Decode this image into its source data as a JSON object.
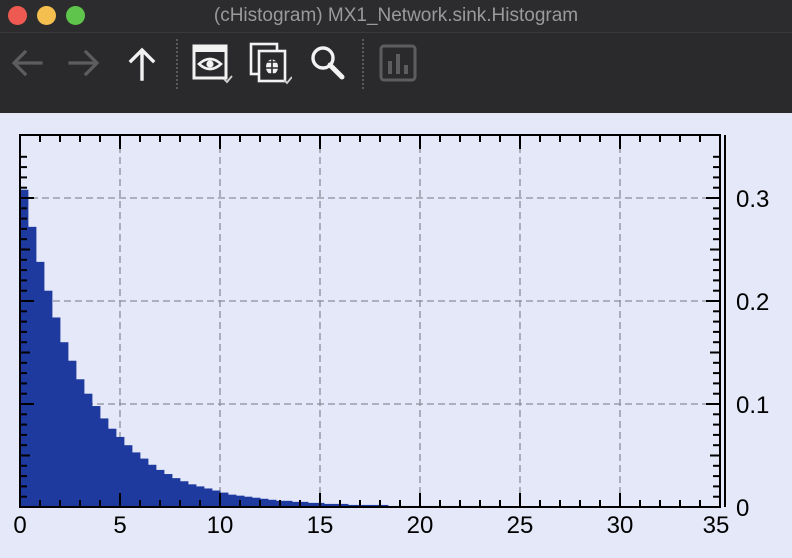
{
  "window": {
    "title": "(cHistogram) MX1_Network.sink.Histogram"
  },
  "toolbar": {
    "items": [
      {
        "name": "back-button",
        "icon": "arrow-left-icon",
        "enabled": false
      },
      {
        "name": "forward-button",
        "icon": "arrow-right-icon",
        "enabled": false
      },
      {
        "name": "up-button",
        "icon": "arrow-up-icon",
        "enabled": true
      },
      {
        "name": "inspect-button",
        "icon": "eye-icon",
        "enabled": true
      },
      {
        "name": "copy-debug-button",
        "icon": "copy-bug-icon",
        "enabled": true
      },
      {
        "name": "search-button",
        "icon": "search-icon",
        "enabled": true
      },
      {
        "name": "chart-button",
        "icon": "bar-chart-icon",
        "enabled": false
      }
    ]
  },
  "colors": {
    "bar": "#1f3a9e",
    "background": "#e4e8f8",
    "titlebar": "#2c2c2e",
    "toolbar": "#2a2a2c"
  },
  "chart_data": {
    "type": "bar",
    "title": "",
    "xlabel": "",
    "ylabel": "",
    "xlim": [
      0,
      35
    ],
    "ylim": [
      0,
      0.3
    ],
    "grid": true,
    "y_axis_side": "right",
    "x_ticks": [
      "0",
      "5",
      "10",
      "15",
      "20",
      "25",
      "30",
      "35"
    ],
    "y_ticks": [
      "0",
      "0.1",
      "0.2",
      "0.3"
    ],
    "bin_width": 0.4,
    "values": [
      0.308,
      0.272,
      0.238,
      0.21,
      0.184,
      0.16,
      0.142,
      0.124,
      0.11,
      0.098,
      0.086,
      0.076,
      0.068,
      0.06,
      0.053,
      0.047,
      0.041,
      0.036,
      0.032,
      0.028,
      0.025,
      0.022,
      0.02,
      0.018,
      0.016,
      0.014,
      0.012,
      0.011,
      0.01,
      0.009,
      0.008,
      0.007,
      0.006,
      0.006,
      0.005,
      0.005,
      0.004,
      0.004,
      0.003,
      0.003,
      0.003,
      0.002,
      0.002,
      0.002,
      0.002,
      0.002,
      0.001,
      0.001,
      0.001,
      0.001,
      0.001,
      0.001,
      0.001,
      0.001,
      0.001,
      0.001,
      0.001,
      0.001,
      0.001,
      0.001
    ]
  }
}
